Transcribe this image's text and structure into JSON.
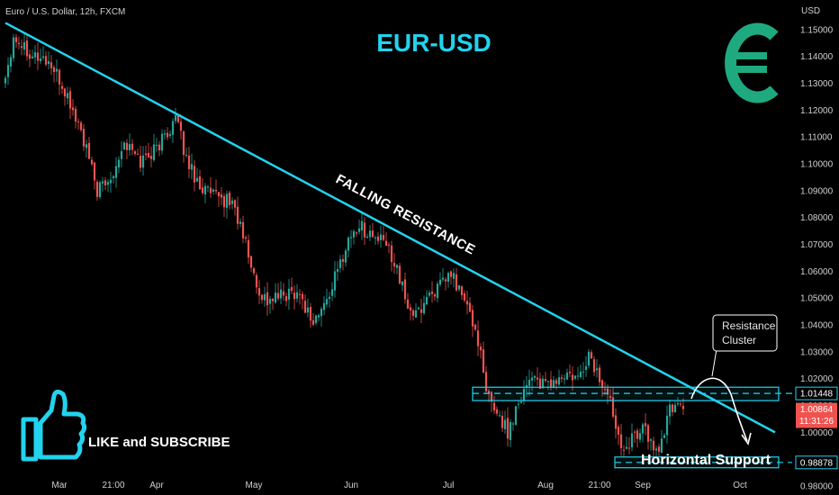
{
  "header": {
    "symbol_info": "Euro / U.S. Dollar, 12h, FXCM"
  },
  "title": "EUR-USD",
  "currency_unit": "USD",
  "logo_icon": "euro-icon",
  "cta": {
    "icon": "thumbs-up-icon",
    "text": "LIKE and SUBSCRIBE"
  },
  "colors": {
    "background": "#000000",
    "accent": "#22d3ee",
    "up": "#26a69a",
    "down": "#ef5350",
    "price_badge": "#ef5350",
    "logo": "#1fa97f"
  },
  "price_labels": {
    "resistance": "1.01448",
    "current": "1.00864",
    "countdown": "11:31:26",
    "support": "0.98878"
  },
  "annotations": {
    "trendline": "FALLING RESISTANCE",
    "callout": [
      "Resistance",
      "Cluster"
    ],
    "support": "Horizontal Support"
  },
  "chart_data": {
    "type": "candlestick",
    "symbol": "EUR/USD",
    "timeframe": "12h",
    "ylim": [
      0.98,
      1.155
    ],
    "y_ticks": [
      "1.15000",
      "1.14000",
      "1.13000",
      "1.12000",
      "1.11000",
      "1.10000",
      "1.09000",
      "1.08000",
      "1.07000",
      "1.06000",
      "1.05000",
      "1.04000",
      "1.03000",
      "1.02000",
      "1.01000",
      "1.00000",
      "0.99000",
      "0.98000"
    ],
    "x_ticks": [
      "Mar",
      "21:00",
      "Apr",
      "May",
      "Jun",
      "Jul",
      "Aug",
      "21:00",
      "Sep",
      "Oct"
    ],
    "x_tick_index": [
      20,
      40,
      56,
      92,
      128,
      164,
      200,
      220,
      236,
      272
    ],
    "close_path": [
      [
        0,
        1.132
      ],
      [
        3,
        1.148
      ],
      [
        10,
        1.141
      ],
      [
        16,
        1.138
      ],
      [
        22,
        1.127
      ],
      [
        28,
        1.112
      ],
      [
        34,
        1.09
      ],
      [
        38,
        1.093
      ],
      [
        44,
        1.108
      ],
      [
        50,
        1.101
      ],
      [
        56,
        1.106
      ],
      [
        60,
        1.112
      ],
      [
        63,
        1.117
      ],
      [
        67,
        1.102
      ],
      [
        72,
        1.092
      ],
      [
        78,
        1.087
      ],
      [
        84,
        1.086
      ],
      [
        89,
        1.07
      ],
      [
        93,
        1.054
      ],
      [
        97,
        1.049
      ],
      [
        103,
        1.051
      ],
      [
        108,
        1.053
      ],
      [
        114,
        1.041
      ],
      [
        118,
        1.047
      ],
      [
        123,
        1.06
      ],
      [
        127,
        1.072
      ],
      [
        131,
        1.077
      ],
      [
        136,
        1.073
      ],
      [
        141,
        1.07
      ],
      [
        145,
        1.062
      ],
      [
        148,
        1.049
      ],
      [
        152,
        1.043
      ],
      [
        157,
        1.052
      ],
      [
        161,
        1.054
      ],
      [
        165,
        1.059
      ],
      [
        170,
        1.049
      ],
      [
        175,
        1.035
      ],
      [
        178,
        1.014
      ],
      [
        182,
        1.008
      ],
      [
        186,
        1.0
      ],
      [
        190,
        1.012
      ],
      [
        195,
        1.022
      ],
      [
        199,
        1.017
      ],
      [
        204,
        1.019
      ],
      [
        208,
        1.021
      ],
      [
        212,
        1.019
      ],
      [
        216,
        1.029
      ],
      [
        219,
        1.022
      ],
      [
        222,
        1.016
      ],
      [
        225,
        1.008
      ],
      [
        228,
        0.996
      ],
      [
        232,
        0.997
      ],
      [
        236,
        1.003
      ],
      [
        240,
        0.993
      ],
      [
        243,
        0.996
      ],
      [
        246,
        1.008
      ],
      [
        249,
        1.012
      ],
      [
        251,
        1.00864
      ]
    ],
    "trendline": [
      {
        "x": 0,
        "y": 1.1525
      },
      {
        "x": 285,
        "y": 1.0
      }
    ],
    "resistance_zone": [
      1.0118,
      1.0168
    ],
    "resistance_level": 1.01448,
    "support_zone": [
      0.9868,
      0.9908
    ],
    "support_level": 0.98878,
    "current_price": 1.00864
  }
}
